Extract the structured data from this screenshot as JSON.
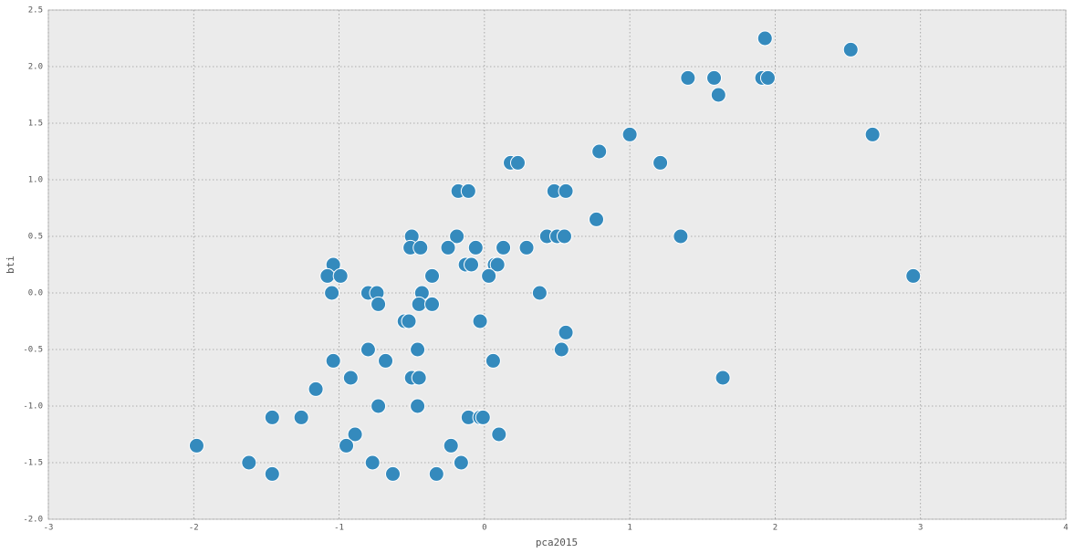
{
  "chart_data": {
    "type": "scatter",
    "x_label": "pca2015",
    "y_label": "bti",
    "color": "#348abd",
    "grid": true,
    "xlim": [
      -3,
      4
    ],
    "xticks": [
      -3,
      -2,
      -1,
      0,
      1,
      2,
      3,
      4
    ],
    "ylim": [
      -2,
      2.5
    ],
    "yticks": [
      {
        "value": -2,
        "label": "-2.0"
      },
      -1.5,
      {
        "value": -1,
        "label": "-1.0"
      },
      -0.5,
      {
        "value": 0,
        "label": "0.0"
      },
      0.5,
      {
        "value": 1,
        "label": "1.0"
      },
      1.5,
      {
        "value": 2,
        "label": "2.0"
      },
      2.5
    ],
    "x": [
      1.93,
      2.52,
      1.4,
      1.58,
      1.91,
      1.95,
      1.61,
      1.0,
      2.67,
      0.79,
      0.18,
      0.23,
      1.21,
      -0.18,
      -0.11,
      0.48,
      0.56,
      0.77,
      -0.5,
      -0.19,
      0.43,
      0.5,
      0.55,
      1.35,
      -0.51,
      -0.44,
      -0.25,
      -0.06,
      0.13,
      0.29,
      -0.13,
      -0.09,
      0.07,
      0.09,
      -1.04,
      -1.08,
      -0.99,
      -0.36,
      0.03,
      2.95,
      -1.05,
      -0.8,
      -0.74,
      -0.43,
      0.38,
      -0.73,
      -0.45,
      -0.36,
      -0.55,
      -0.52,
      -0.03,
      0.56,
      -0.8,
      -0.46,
      0.53,
      -1.04,
      -0.68,
      0.06,
      -0.92,
      -0.5,
      -0.45,
      1.64,
      -1.16,
      -0.73,
      -0.46,
      -1.46,
      -1.26,
      -0.11,
      -0.03,
      -0.01,
      -0.89,
      0.1,
      -1.98,
      -0.95,
      -0.23,
      -1.62,
      -0.77,
      -0.16,
      -1.46,
      -0.63,
      -0.33
    ],
    "values": [
      2.25,
      2.15,
      1.9,
      1.9,
      1.9,
      1.9,
      1.75,
      1.4,
      1.4,
      1.25,
      1.15,
      1.15,
      1.15,
      0.9,
      0.9,
      0.9,
      0.9,
      0.65,
      0.5,
      0.5,
      0.5,
      0.5,
      0.5,
      0.5,
      0.4,
      0.4,
      0.4,
      0.4,
      0.4,
      0.4,
      0.25,
      0.25,
      0.25,
      0.25,
      0.25,
      0.15,
      0.15,
      0.15,
      0.15,
      0.15,
      0.0,
      0.0,
      0.0,
      0.0,
      0.0,
      -0.1,
      -0.1,
      -0.1,
      -0.25,
      -0.25,
      -0.25,
      -0.35,
      -0.5,
      -0.5,
      -0.5,
      -0.6,
      -0.6,
      -0.6,
      -0.75,
      -0.75,
      -0.75,
      -0.75,
      -0.85,
      -1.0,
      -1.0,
      -1.1,
      -1.1,
      -1.1,
      -1.1,
      -1.1,
      -1.25,
      -1.25,
      -1.35,
      -1.35,
      -1.35,
      -1.5,
      -1.5,
      -1.5,
      -1.6,
      -1.6,
      -1.6
    ]
  }
}
